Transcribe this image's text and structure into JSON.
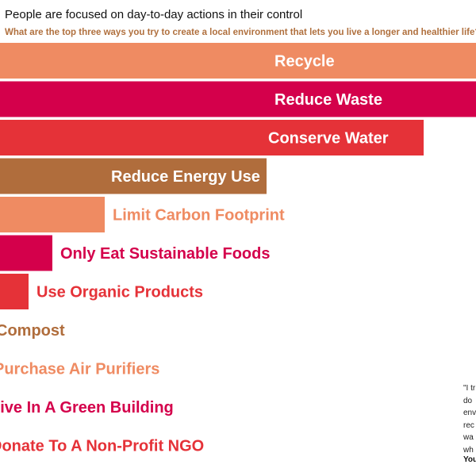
{
  "header": {
    "title": "People are focused on day-to-day actions in their control",
    "subtitle": "What are the top three ways you try to create a local environment that lets you live a longer and healthier life?"
  },
  "quote": {
    "lines": [
      "\"I tr",
      "do",
      "env",
      "rec",
      "wa",
      "wh"
    ],
    "source": "You"
  },
  "colors": {
    "salmon": "#ef8b62",
    "crimson": "#d4004b",
    "red": "#e53238",
    "brown": "#b06d3c"
  },
  "chart_data": {
    "type": "bar",
    "orientation": "horizontal",
    "title": "People are focused on day-to-day actions in their control",
    "subtitle": "What are the top three ways you try to create a local environment that lets you live a longer and healthier life?",
    "xlabel": "",
    "ylabel": "",
    "grid": false,
    "legend": "none",
    "categories": [
      "Recycle",
      "Reduce Waste",
      "Conserve Water",
      "Reduce Energy Use",
      "Limit Carbon Footprint",
      "Only Eat Sustainable Foods",
      "Use Organic Products",
      "Compost",
      "Purchase Air Purifiers",
      "Live In A Green Building",
      "Donate To A Non-Profit NGO"
    ],
    "values": [
      100,
      100,
      89,
      56,
      22,
      11,
      6,
      0,
      0,
      0,
      0
    ],
    "xlim": [
      0,
      100
    ],
    "bar_colors": [
      "salmon",
      "crimson",
      "red",
      "brown",
      "salmon",
      "crimson",
      "red",
      "brown",
      "salmon",
      "crimson",
      "red"
    ]
  }
}
